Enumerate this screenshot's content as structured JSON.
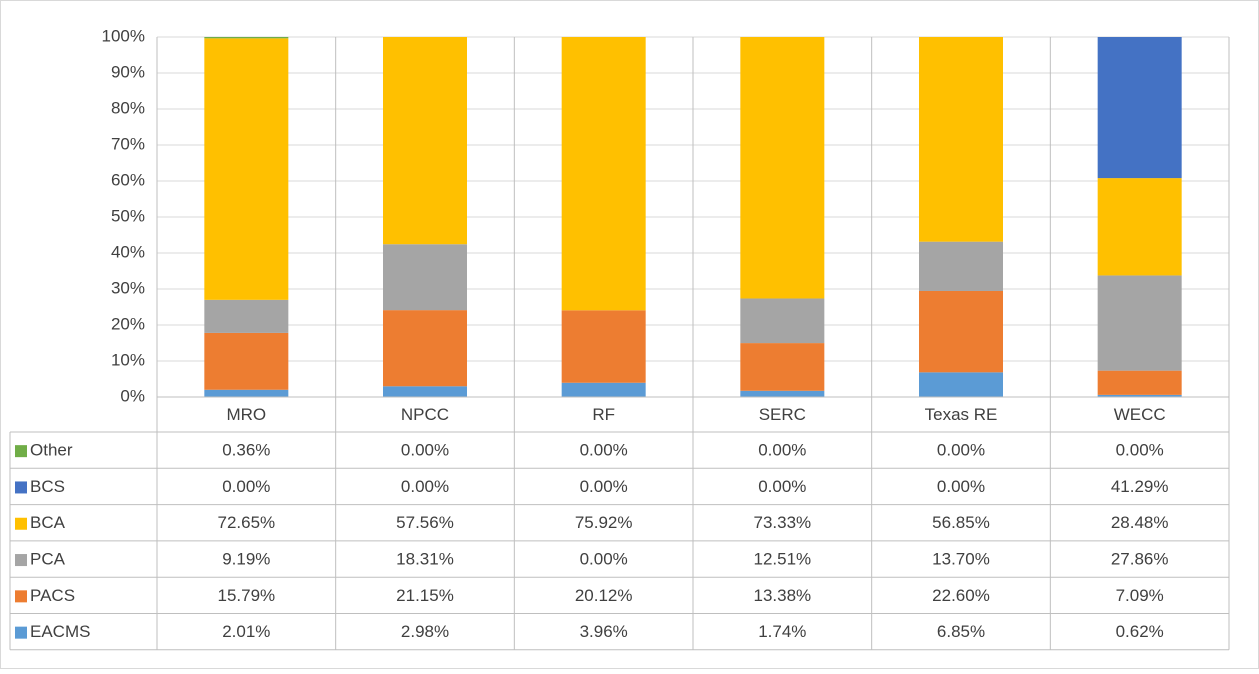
{
  "chart_data": {
    "type": "bar",
    "stack": "percent",
    "grid": true,
    "categories": [
      "MRO",
      "NPCC",
      "RF",
      "SERC",
      "Texas RE",
      "WECC"
    ],
    "ylim": [
      0,
      100
    ],
    "yticks": [
      {
        "value": 0,
        "label": "0%"
      },
      {
        "value": 10,
        "label": "10%"
      },
      {
        "value": 20,
        "label": "20%"
      },
      {
        "value": 30,
        "label": "30%"
      },
      {
        "value": 40,
        "label": "40%"
      },
      {
        "value": 50,
        "label": "50%"
      },
      {
        "value": 60,
        "label": "60%"
      },
      {
        "value": 70,
        "label": "70%"
      },
      {
        "value": 80,
        "label": "80%"
      },
      {
        "value": 90,
        "label": "90%"
      },
      {
        "value": 100,
        "label": "100%"
      }
    ],
    "series": [
      {
        "name": "EACMS",
        "color": "#5b9bd5",
        "values": [
          2.01,
          2.98,
          3.96,
          1.74,
          6.85,
          0.62
        ],
        "value_labels": [
          "2.01%",
          "2.98%",
          "3.96%",
          "1.74%",
          "6.85%",
          "0.62%"
        ]
      },
      {
        "name": "PACS",
        "color": "#ed7d31",
        "values": [
          15.79,
          21.15,
          20.12,
          13.38,
          22.6,
          7.09
        ],
        "value_labels": [
          "15.79%",
          "21.15%",
          "20.12%",
          "13.38%",
          "22.60%",
          "7.09%"
        ]
      },
      {
        "name": "PCA",
        "color": "#a5a5a5",
        "values": [
          9.19,
          18.31,
          0.0,
          12.51,
          13.7,
          27.86
        ],
        "value_labels": [
          "9.19%",
          "18.31%",
          "0.00%",
          "12.51%",
          "13.70%",
          "27.86%"
        ]
      },
      {
        "name": "BCA",
        "color": "#ffc000",
        "values": [
          72.65,
          57.56,
          75.92,
          73.33,
          56.85,
          28.48
        ],
        "value_labels": [
          "72.65%",
          "57.56%",
          "75.92%",
          "73.33%",
          "56.85%",
          "28.48%"
        ]
      },
      {
        "name": "BCS",
        "color": "#4472c4",
        "values": [
          0.0,
          0.0,
          0.0,
          0.0,
          0.0,
          41.29
        ],
        "value_labels": [
          "0.00%",
          "0.00%",
          "0.00%",
          "0.00%",
          "0.00%",
          "41.29%"
        ]
      },
      {
        "name": "Other",
        "color": "#70ad47",
        "values": [
          0.36,
          0.0,
          0.0,
          0.0,
          0.0,
          0.0
        ],
        "value_labels": [
          "0.36%",
          "0.00%",
          "0.00%",
          "0.00%",
          "0.00%",
          "0.00%"
        ]
      }
    ]
  }
}
